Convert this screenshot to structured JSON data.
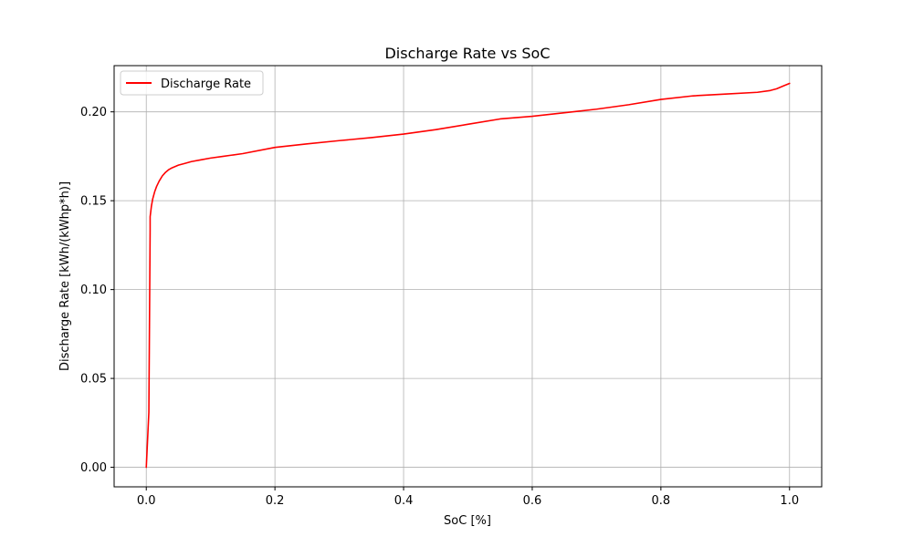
{
  "chart_data": {
    "type": "line",
    "title": "Discharge Rate vs SoC",
    "xlabel": "SoC [%]",
    "ylabel": "Discharge Rate [kWh/(kWhp*h)]",
    "xlim": [
      -0.05,
      1.05
    ],
    "ylim": [
      -0.011,
      0.226
    ],
    "xticks": [
      0.0,
      0.2,
      0.4,
      0.6,
      0.8,
      1.0
    ],
    "xtick_labels": [
      "0.0",
      "0.2",
      "0.4",
      "0.6",
      "0.8",
      "1.0"
    ],
    "yticks": [
      0.0,
      0.05,
      0.1,
      0.15,
      0.2
    ],
    "ytick_labels": [
      "0.00",
      "0.05",
      "0.10",
      "0.15",
      "0.20"
    ],
    "grid": true,
    "legend": "upper-left",
    "series": [
      {
        "name": "Discharge Rate",
        "color": "#ff0000",
        "x": [
          0.0,
          0.004,
          0.006,
          0.006,
          0.008,
          0.01,
          0.013,
          0.016,
          0.02,
          0.025,
          0.03,
          0.035,
          0.04,
          0.05,
          0.06,
          0.07,
          0.085,
          0.1,
          0.12,
          0.15,
          0.2,
          0.25,
          0.3,
          0.35,
          0.4,
          0.45,
          0.5,
          0.55,
          0.6,
          0.65,
          0.7,
          0.75,
          0.8,
          0.85,
          0.9,
          0.95,
          0.97,
          0.98,
          0.99,
          1.0
        ],
        "y": [
          0.0,
          0.031,
          0.134,
          0.141,
          0.147,
          0.151,
          0.155,
          0.158,
          0.161,
          0.164,
          0.166,
          0.1675,
          0.1685,
          0.17,
          0.171,
          0.172,
          0.173,
          0.174,
          0.175,
          0.1765,
          0.18,
          0.182,
          0.1838,
          0.1855,
          0.1875,
          0.19,
          0.193,
          0.196,
          0.1975,
          0.1995,
          0.2015,
          0.204,
          0.207,
          0.209,
          0.21,
          0.211,
          0.212,
          0.213,
          0.2145,
          0.216
        ]
      }
    ]
  }
}
